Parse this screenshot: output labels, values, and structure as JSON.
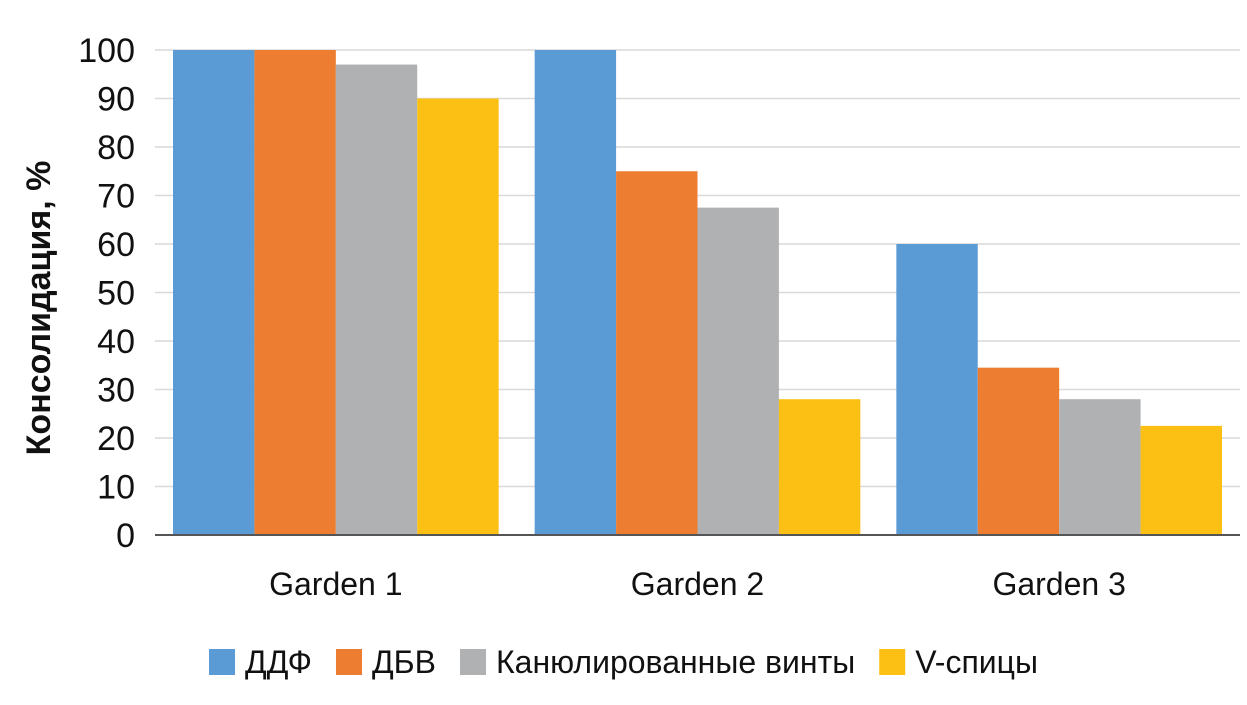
{
  "chart_data": {
    "type": "bar",
    "title": "",
    "xlabel": "",
    "ylabel": "Консолидация, %",
    "ylim": [
      0,
      100
    ],
    "yticks": [
      0,
      10,
      20,
      30,
      40,
      50,
      60,
      70,
      80,
      90,
      100
    ],
    "grid": true,
    "legend_position": "bottom",
    "categories": [
      "Garden 1",
      "Garden 2",
      "Garden 3"
    ],
    "series": [
      {
        "name": "ДДФ",
        "color": "#5b9bd5",
        "values": [
          100,
          100,
          60
        ]
      },
      {
        "name": "ДБВ",
        "color": "#ed7d31",
        "values": [
          100,
          75,
          34.5
        ]
      },
      {
        "name": "Канюлированные винты",
        "color": "#b0b1b3",
        "values": [
          97,
          67.5,
          28
        ]
      },
      {
        "name": "V-спицы",
        "color": "#fcbf14",
        "values": [
          90,
          28,
          22.5
        ]
      }
    ]
  }
}
